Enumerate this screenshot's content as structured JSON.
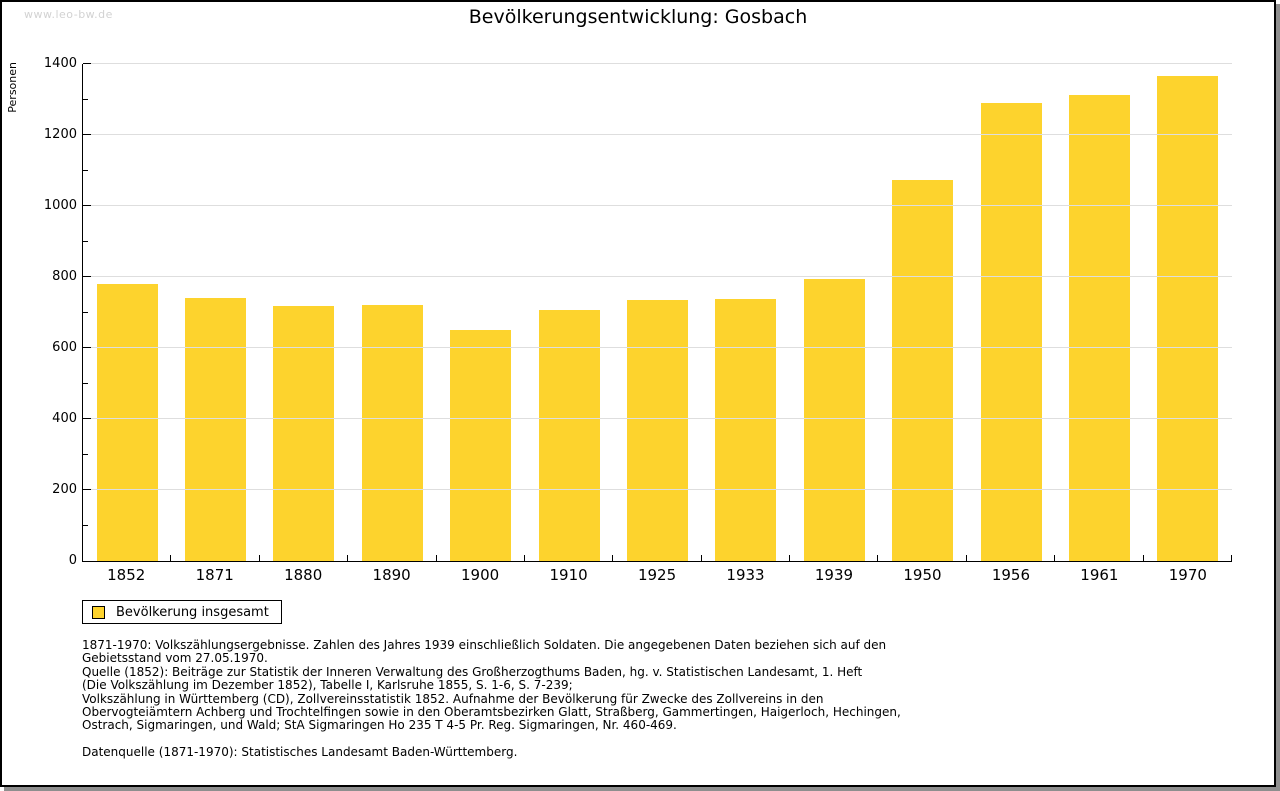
{
  "watermark": "www.leo-bw.de",
  "title": "Bevölkerungsentwicklung: Gosbach",
  "chart_data": {
    "type": "bar",
    "title": "Bevölkerungsentwicklung: Gosbach",
    "ylabel": "Personen",
    "xlabel": "",
    "categories": [
      "1852",
      "1871",
      "1880",
      "1890",
      "1900",
      "1910",
      "1925",
      "1933",
      "1939",
      "1950",
      "1956",
      "1961",
      "1970"
    ],
    "series": [
      {
        "name": "Bevölkerung insgesamt",
        "values": [
          780,
          740,
          717,
          720,
          650,
          706,
          735,
          738,
          795,
          1073,
          1289,
          1313,
          1365
        ]
      }
    ],
    "ylim": [
      0,
      1400
    ],
    "ytick_step": 200,
    "yminor_step": 100,
    "grid": true,
    "legend_position": "bottom-left",
    "bar_color": "#FDD32D",
    "grid_color": "#DEDEDE"
  },
  "legend": {
    "label": "Bevölkerung insgesamt",
    "swatch_color": "#FDD32D"
  },
  "footnotes": {
    "lines": [
      "1871-1970: Volkszählungsergebnisse. Zahlen des Jahres 1939 einschließlich Soldaten. Die angegebenen Daten beziehen sich auf den",
      "Gebietsstand vom 27.05.1970.",
      "Quelle (1852): Beiträge zur Statistik der Inneren Verwaltung des Großherzogthums Baden, hg. v. Statistischen Landesamt, 1. Heft",
      "(Die Volkszählung im Dezember 1852), Tabelle I, Karlsruhe 1855, S. 1-6, S. 7-239;",
      "Volkszählung in Württemberg (CD), Zollvereinsstatistik 1852. Aufnahme der Bevölkerung für Zwecke des Zollvereins in den",
      "Obervogteiämtern Achberg und Trochtelfingen sowie in den Oberamtsbezirken Glatt, Straßberg, Gammertingen, Haigerloch, Hechingen,",
      "Ostrach, Sigmaringen, und Wald; StA Sigmaringen Ho 235 T 4-5 Pr. Reg. Sigmaringen, Nr. 460-469."
    ],
    "datasource": "Datenquelle (1871-1970): Statistisches Landesamt Baden-Württemberg."
  }
}
